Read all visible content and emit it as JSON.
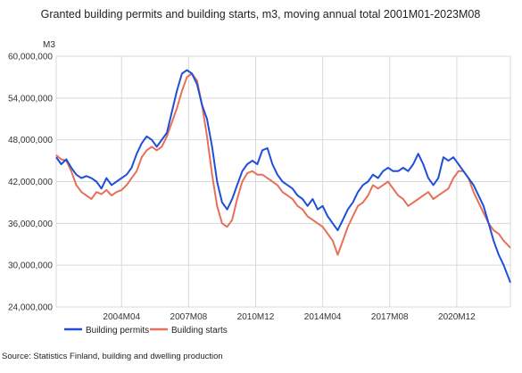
{
  "chart_data": {
    "type": "line",
    "title": "Granted building permits and building starts, m3, moving annual total 2001M01-2023M08",
    "ylabel": "M3",
    "xlabel": "",
    "ylim": [
      24000000,
      60000000
    ],
    "y_ticks": [
      24000000,
      30000000,
      36000000,
      42000000,
      48000000,
      54000000,
      60000000
    ],
    "y_tick_labels": [
      "24,000,000",
      "30,000,000",
      "36,000,000",
      "42,000,000",
      "48,000,000",
      "54,000,000",
      "60,000,000"
    ],
    "x_range": [
      "2001M01",
      "2023M08"
    ],
    "x_ticks": [
      "2004M04",
      "2007M08",
      "2010M12",
      "2014M04",
      "2017M08",
      "2020M12"
    ],
    "grid": true,
    "legend": "bottom-left",
    "series": [
      {
        "name": "Building permits",
        "color": "#1f4fd8",
        "points": [
          [
            "2001M01",
            45500000
          ],
          [
            "2001M04",
            44500000
          ],
          [
            "2001M07",
            45200000
          ],
          [
            "2001M10",
            44000000
          ],
          [
            "2002M01",
            43000000
          ],
          [
            "2002M04",
            42500000
          ],
          [
            "2002M07",
            42800000
          ],
          [
            "2002M10",
            42500000
          ],
          [
            "2003M01",
            42000000
          ],
          [
            "2003M04",
            41000000
          ],
          [
            "2003M07",
            42500000
          ],
          [
            "2003M10",
            41500000
          ],
          [
            "2004M01",
            42000000
          ],
          [
            "2004M04",
            42500000
          ],
          [
            "2004M07",
            43000000
          ],
          [
            "2004M10",
            44000000
          ],
          [
            "2005M01",
            46000000
          ],
          [
            "2005M04",
            47500000
          ],
          [
            "2005M07",
            48500000
          ],
          [
            "2005M10",
            48000000
          ],
          [
            "2006M01",
            47000000
          ],
          [
            "2006M04",
            48000000
          ],
          [
            "2006M07",
            49000000
          ],
          [
            "2006M10",
            52000000
          ],
          [
            "2007M01",
            55000000
          ],
          [
            "2007M04",
            57500000
          ],
          [
            "2007M07",
            58000000
          ],
          [
            "2007M10",
            57500000
          ],
          [
            "2008M01",
            56000000
          ],
          [
            "2008M04",
            53000000
          ],
          [
            "2008M07",
            51000000
          ],
          [
            "2008M10",
            47000000
          ],
          [
            "2009M01",
            42000000
          ],
          [
            "2009M04",
            39000000
          ],
          [
            "2009M07",
            38000000
          ],
          [
            "2009M10",
            39500000
          ],
          [
            "2010M01",
            41500000
          ],
          [
            "2010M04",
            43500000
          ],
          [
            "2010M07",
            44500000
          ],
          [
            "2010M10",
            45000000
          ],
          [
            "2011M01",
            44500000
          ],
          [
            "2011M04",
            46500000
          ],
          [
            "2011M07",
            46800000
          ],
          [
            "2011M10",
            44500000
          ],
          [
            "2012M01",
            43000000
          ],
          [
            "2012M04",
            42000000
          ],
          [
            "2012M07",
            41500000
          ],
          [
            "2012M10",
            41000000
          ],
          [
            "2013M01",
            40000000
          ],
          [
            "2013M04",
            39500000
          ],
          [
            "2013M07",
            38500000
          ],
          [
            "2013M10",
            39500000
          ],
          [
            "2014M01",
            38000000
          ],
          [
            "2014M04",
            38500000
          ],
          [
            "2014M07",
            37000000
          ],
          [
            "2014M10",
            36000000
          ],
          [
            "2015M01",
            35000000
          ],
          [
            "2015M04",
            36500000
          ],
          [
            "2015M07",
            38000000
          ],
          [
            "2015M10",
            39000000
          ],
          [
            "2016M01",
            40500000
          ],
          [
            "2016M04",
            41500000
          ],
          [
            "2016M07",
            42000000
          ],
          [
            "2016M10",
            43000000
          ],
          [
            "2017M01",
            42500000
          ],
          [
            "2017M04",
            43500000
          ],
          [
            "2017M07",
            44000000
          ],
          [
            "2017M10",
            43500000
          ],
          [
            "2018M01",
            43500000
          ],
          [
            "2018M04",
            44000000
          ],
          [
            "2018M07",
            43500000
          ],
          [
            "2018M10",
            44500000
          ],
          [
            "2019M01",
            46000000
          ],
          [
            "2019M04",
            44500000
          ],
          [
            "2019M07",
            42500000
          ],
          [
            "2019M10",
            41500000
          ],
          [
            "2020M01",
            42500000
          ],
          [
            "2020M04",
            45500000
          ],
          [
            "2020M07",
            45000000
          ],
          [
            "2020M10",
            45500000
          ],
          [
            "2021M01",
            44500000
          ],
          [
            "2021M04",
            43500000
          ],
          [
            "2021M07",
            42500000
          ],
          [
            "2021M10",
            41500000
          ],
          [
            "2022M01",
            40000000
          ],
          [
            "2022M04",
            38500000
          ],
          [
            "2022M07",
            36000000
          ],
          [
            "2022M10",
            33500000
          ],
          [
            "2023M01",
            31500000
          ],
          [
            "2023M04",
            30000000
          ],
          [
            "2023M08",
            27500000
          ]
        ]
      },
      {
        "name": "Building starts",
        "color": "#e8705a",
        "points": [
          [
            "2001M01",
            45800000
          ],
          [
            "2001M04",
            45200000
          ],
          [
            "2001M07",
            45000000
          ],
          [
            "2001M10",
            43500000
          ],
          [
            "2002M01",
            41500000
          ],
          [
            "2002M04",
            40500000
          ],
          [
            "2002M07",
            40000000
          ],
          [
            "2002M10",
            39500000
          ],
          [
            "2003M01",
            40500000
          ],
          [
            "2003M04",
            40200000
          ],
          [
            "2003M07",
            40800000
          ],
          [
            "2003M10",
            40000000
          ],
          [
            "2004M01",
            40500000
          ],
          [
            "2004M04",
            40800000
          ],
          [
            "2004M07",
            41500000
          ],
          [
            "2004M10",
            42500000
          ],
          [
            "2005M01",
            43500000
          ],
          [
            "2005M04",
            45500000
          ],
          [
            "2005M07",
            46500000
          ],
          [
            "2005M10",
            47000000
          ],
          [
            "2006M01",
            46500000
          ],
          [
            "2006M04",
            47000000
          ],
          [
            "2006M07",
            48500000
          ],
          [
            "2006M10",
            50500000
          ],
          [
            "2007M01",
            52500000
          ],
          [
            "2007M04",
            55000000
          ],
          [
            "2007M07",
            57000000
          ],
          [
            "2007M10",
            57500000
          ],
          [
            "2008M01",
            56500000
          ],
          [
            "2008M04",
            53000000
          ],
          [
            "2008M07",
            48500000
          ],
          [
            "2008M10",
            43000000
          ],
          [
            "2009M01",
            38500000
          ],
          [
            "2009M04",
            36000000
          ],
          [
            "2009M07",
            35500000
          ],
          [
            "2009M10",
            36500000
          ],
          [
            "2010M01",
            39500000
          ],
          [
            "2010M04",
            42000000
          ],
          [
            "2010M07",
            43200000
          ],
          [
            "2010M10",
            43500000
          ],
          [
            "2011M01",
            43000000
          ],
          [
            "2011M04",
            43000000
          ],
          [
            "2011M07",
            42500000
          ],
          [
            "2011M10",
            42000000
          ],
          [
            "2012M01",
            41500000
          ],
          [
            "2012M04",
            40500000
          ],
          [
            "2012M07",
            40000000
          ],
          [
            "2012M10",
            39500000
          ],
          [
            "2013M01",
            38500000
          ],
          [
            "2013M04",
            38000000
          ],
          [
            "2013M07",
            37000000
          ],
          [
            "2013M10",
            36500000
          ],
          [
            "2014M01",
            36000000
          ],
          [
            "2014M04",
            35500000
          ],
          [
            "2014M07",
            34500000
          ],
          [
            "2014M10",
            33500000
          ],
          [
            "2015M01",
            31500000
          ],
          [
            "2015M04",
            33500000
          ],
          [
            "2015M07",
            35500000
          ],
          [
            "2015M10",
            37000000
          ],
          [
            "2016M01",
            38500000
          ],
          [
            "2016M04",
            39000000
          ],
          [
            "2016M07",
            40000000
          ],
          [
            "2016M10",
            41500000
          ],
          [
            "2017M01",
            41000000
          ],
          [
            "2017M04",
            41500000
          ],
          [
            "2017M07",
            42000000
          ],
          [
            "2017M10",
            41000000
          ],
          [
            "2018M01",
            40000000
          ],
          [
            "2018M04",
            39500000
          ],
          [
            "2018M07",
            38500000
          ],
          [
            "2018M10",
            39000000
          ],
          [
            "2019M01",
            39500000
          ],
          [
            "2019M04",
            40000000
          ],
          [
            "2019M07",
            40500000
          ],
          [
            "2019M10",
            39500000
          ],
          [
            "2020M01",
            40000000
          ],
          [
            "2020M04",
            40500000
          ],
          [
            "2020M07",
            41000000
          ],
          [
            "2020M10",
            42500000
          ],
          [
            "2021M01",
            43500000
          ],
          [
            "2021M04",
            43500000
          ],
          [
            "2021M07",
            42500000
          ],
          [
            "2021M10",
            40500000
          ],
          [
            "2022M01",
            39000000
          ],
          [
            "2022M04",
            37500000
          ],
          [
            "2022M07",
            36000000
          ],
          [
            "2022M10",
            35000000
          ],
          [
            "2023M01",
            34500000
          ],
          [
            "2023M04",
            33500000
          ],
          [
            "2023M08",
            32500000
          ]
        ]
      }
    ]
  },
  "source": "Source: Statistics Finland, building and dwelling production"
}
